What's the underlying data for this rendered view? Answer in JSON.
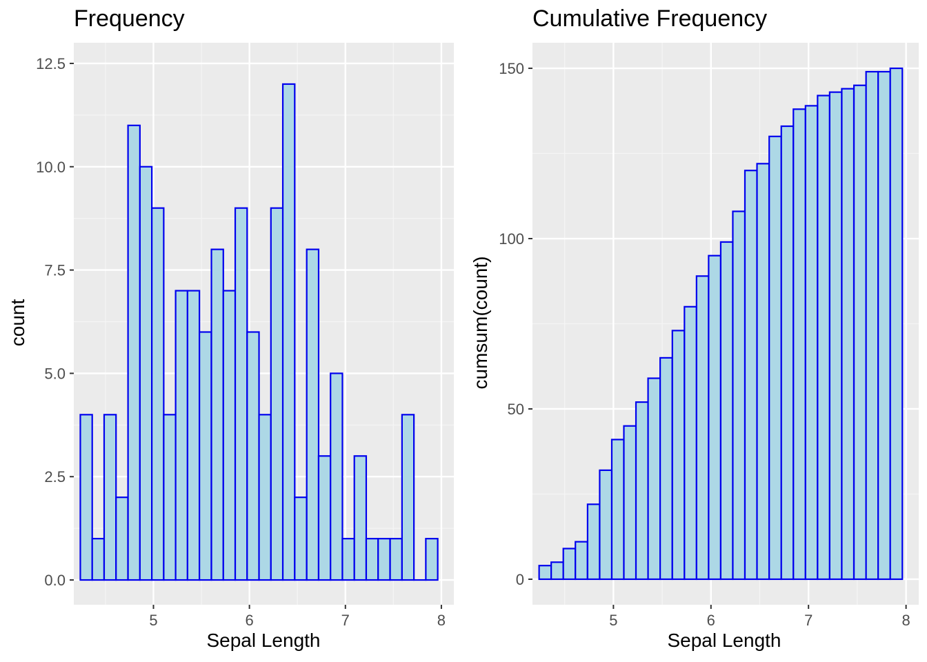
{
  "colors": {
    "panel_background": "#EBEBEB",
    "grid_major": "#FFFFFF",
    "grid_minor": "#F5F5F5",
    "bar_fill": "#ADD8E6",
    "bar_outline": "#0000EE",
    "tick_text": "#4D4D4D"
  },
  "chart_data": [
    {
      "type": "bar",
      "title": "Frequency",
      "xlabel": "Sepal Length",
      "ylabel": "count",
      "grid": true,
      "legend": "none",
      "xlim": [
        4.17,
        8.13
      ],
      "ylim": [
        -0.6,
        13.0
      ],
      "x_ticks": [
        5,
        6,
        7,
        8
      ],
      "x_tick_labels": [
        "5",
        "6",
        "7",
        "8"
      ],
      "y_ticks": [
        0,
        2.5,
        5,
        7.5,
        10,
        12.5
      ],
      "y_tick_labels": [
        "0.0",
        "2.5",
        "5.0",
        "7.5",
        "10.0",
        "12.5"
      ],
      "bin_width": 0.124,
      "bin_centers": [
        4.3,
        4.424,
        4.548,
        4.672,
        4.797,
        4.921,
        5.045,
        5.169,
        5.293,
        5.417,
        5.541,
        5.666,
        5.79,
        5.914,
        6.038,
        6.162,
        6.286,
        6.41,
        6.534,
        6.659,
        6.783,
        6.907,
        7.031,
        7.155,
        7.279,
        7.403,
        7.528,
        7.652,
        7.776,
        7.9
      ],
      "values": [
        4,
        1,
        4,
        2,
        11,
        10,
        9,
        4,
        7,
        7,
        6,
        8,
        7,
        9,
        6,
        4,
        9,
        12,
        2,
        8,
        3,
        5,
        1,
        3,
        1,
        1,
        1,
        4,
        0,
        1
      ]
    },
    {
      "type": "bar",
      "title": "Cumulative Frequency",
      "xlabel": "Sepal Length",
      "ylabel": "cumsum(count)",
      "grid": true,
      "legend": "none",
      "xlim": [
        4.17,
        8.13
      ],
      "ylim": [
        -7.5,
        157.5
      ],
      "x_ticks": [
        5,
        6,
        7,
        8
      ],
      "x_tick_labels": [
        "5",
        "6",
        "7",
        "8"
      ],
      "y_ticks": [
        0,
        50,
        100,
        150
      ],
      "y_tick_labels": [
        "0",
        "50",
        "100",
        "150"
      ],
      "bin_width": 0.124,
      "bin_centers": [
        4.3,
        4.424,
        4.548,
        4.672,
        4.797,
        4.921,
        5.045,
        5.169,
        5.293,
        5.417,
        5.541,
        5.666,
        5.79,
        5.914,
        6.038,
        6.162,
        6.286,
        6.41,
        6.534,
        6.659,
        6.783,
        6.907,
        7.031,
        7.155,
        7.279,
        7.403,
        7.528,
        7.652,
        7.776,
        7.9
      ],
      "values": [
        4,
        5,
        9,
        11,
        22,
        32,
        41,
        45,
        52,
        59,
        65,
        73,
        80,
        89,
        95,
        99,
        108,
        120,
        122,
        130,
        133,
        138,
        139,
        142,
        143,
        144,
        145,
        149,
        149,
        150
      ]
    }
  ]
}
